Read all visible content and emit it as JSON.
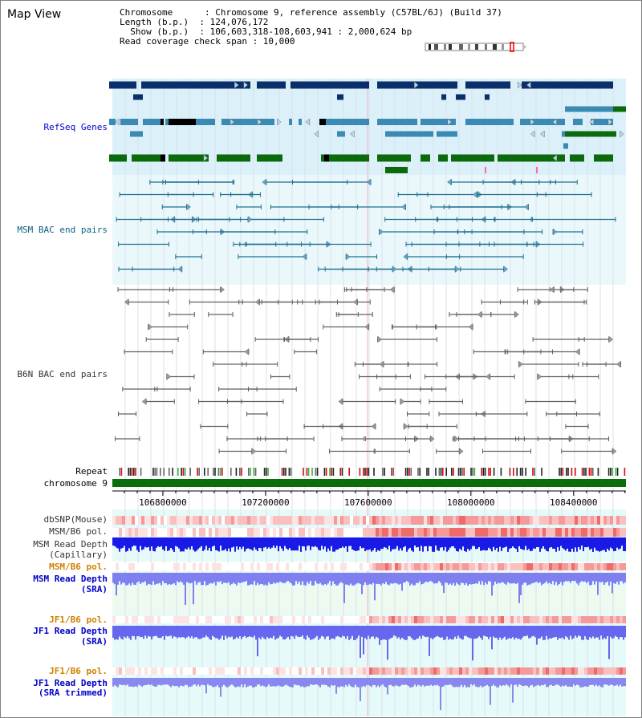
{
  "title": "Map View",
  "info": {
    "line1": "Chromosome      : Chromosome 9, reference assembly (C57BL/6J) (Build 37)",
    "line2": "Length (b.p.)  : 124,076,172",
    "line3": "  Show (b.p.)  : 106,603,318-108,603,941 : 2,000,624 bp",
    "line4": "Read coverage check span : 10,000"
  },
  "tracks": {
    "refseq": "RefSeq Genes",
    "msm_bac": "MSM BAC end pairs",
    "b6n_bac": "B6N BAC end pairs",
    "repeat": "Repeat",
    "chromosome": "chromosome 9",
    "dbsnp": "dbSNP(Mouse)",
    "msm_b6_pol1": "MSM/B6 pol.",
    "msm_depth_cap_1": "MSM Read Depth",
    "msm_depth_cap_2": "(Capillary)",
    "msm_b6_pol2": "MSM/B6 pol.",
    "msm_depth_sra_1": "MSM Read Depth",
    "msm_depth_sra_2": "(SRA)",
    "jf1_b6_pol1": "JF1/B6 pol.",
    "jf1_depth_sra_1": "JF1 Read Depth",
    "jf1_depth_sra_2": "(SRA)",
    "jf1_b6_pol2": "JF1/B6 pol.",
    "jf1_depth_trim_1": "JF1 Read Depth",
    "jf1_depth_trim_2": "(SRA trimmed)"
  },
  "axis": {
    "ticks": [
      "106800000",
      "107200000",
      "107600000",
      "108000000",
      "108400000"
    ],
    "range": [
      106603318,
      108603941
    ]
  },
  "colors": {
    "refseq_dark": "#0a2f6a",
    "refseq_mid": "#3b8ab3",
    "refseq_green": "#0b6a0b",
    "msm_line": "#1f6f8f",
    "b6n_line": "#606060",
    "chromosome_bar": "#0b6e0b",
    "label_gray": "#333333",
    "label_blue": "#0000cc",
    "label_teal": "#0a6080",
    "label_orange": "#d08000",
    "depth_blue": "#1a1ae6",
    "depth_light_blue": "#7f7ff0"
  }
}
